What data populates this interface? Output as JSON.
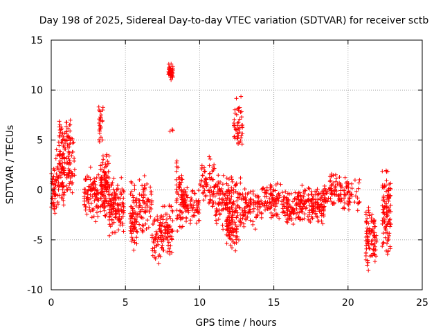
{
  "chart_data": {
    "type": "scatter",
    "title": "Day 198 of 2025, Sidereal Day-to-day VTEC variation (SDTVAR) for receiver sctb",
    "xlabel": "GPS time / hours",
    "ylabel": "SDTVAR / TECUs",
    "xlim": [
      0,
      25
    ],
    "ylim": [
      -10,
      15
    ],
    "xticks": [
      0,
      5,
      10,
      15,
      20,
      25
    ],
    "yticks": [
      -10,
      -5,
      0,
      5,
      10,
      15
    ],
    "xtick_labels": [
      "0",
      "5",
      "10",
      "15",
      "20",
      "25"
    ],
    "ytick_labels": [
      "-10",
      "-5",
      "0",
      "5",
      "10",
      "15"
    ],
    "grid": true,
    "marker": "+",
    "color": "#ff0000",
    "clusters": [
      {
        "x": [
          0.0,
          0.3
        ],
        "y": [
          -3.5,
          3.0
        ],
        "n": 40
      },
      {
        "x": [
          0.3,
          0.9
        ],
        "y": [
          -2.0,
          5.0
        ],
        "n": 80
      },
      {
        "x": [
          0.5,
          1.3
        ],
        "y": [
          2.0,
          7.8
        ],
        "n": 60
      },
      {
        "x": [
          1.0,
          1.6
        ],
        "y": [
          -1.5,
          5.5
        ],
        "n": 50
      },
      {
        "x": [
          2.2,
          3.2
        ],
        "y": [
          -3.5,
          2.5
        ],
        "n": 90
      },
      {
        "x": [
          3.2,
          3.5
        ],
        "y": [
          4.5,
          8.5
        ],
        "n": 25
      },
      {
        "x": [
          3.3,
          3.9
        ],
        "y": [
          -3.0,
          4.0
        ],
        "n": 110
      },
      {
        "x": [
          3.9,
          4.9
        ],
        "y": [
          -5.0,
          1.5
        ],
        "n": 120
      },
      {
        "x": [
          5.3,
          5.8
        ],
        "y": [
          -6.8,
          1.0
        ],
        "n": 70
      },
      {
        "x": [
          5.8,
          6.8
        ],
        "y": [
          -4.5,
          1.5
        ],
        "n": 70
      },
      {
        "x": [
          6.8,
          7.3
        ],
        "y": [
          -7.8,
          -2.0
        ],
        "n": 40
      },
      {
        "x": [
          7.3,
          8.2
        ],
        "y": [
          -7.0,
          -1.0
        ],
        "n": 90
      },
      {
        "x": [
          7.9,
          8.2
        ],
        "y": [
          11.0,
          12.8
        ],
        "n": 40
      },
      {
        "x": [
          8.0,
          8.2
        ],
        "y": [
          5.8,
          6.3
        ],
        "n": 3
      },
      {
        "x": [
          8.4,
          8.9
        ],
        "y": [
          -5.0,
          4.0
        ],
        "n": 60
      },
      {
        "x": [
          8.8,
          10.0
        ],
        "y": [
          -3.5,
          0.5
        ],
        "n": 80
      },
      {
        "x": [
          10.0,
          11.0
        ],
        "y": [
          -2.0,
          3.5
        ],
        "n": 70
      },
      {
        "x": [
          11.0,
          12.0
        ],
        "y": [
          -4.0,
          2.0
        ],
        "n": 80
      },
      {
        "x": [
          11.8,
          12.8
        ],
        "y": [
          -6.5,
          2.0
        ],
        "n": 140
      },
      {
        "x": [
          12.3,
          12.9
        ],
        "y": [
          3.0,
          9.5
        ],
        "n": 50
      },
      {
        "x": [
          12.8,
          14.2
        ],
        "y": [
          -4.0,
          0.5
        ],
        "n": 90
      },
      {
        "x": [
          14.2,
          15.6
        ],
        "y": [
          -3.5,
          1.0
        ],
        "n": 90
      },
      {
        "x": [
          15.6,
          16.8
        ],
        "y": [
          -3.5,
          0.0
        ],
        "n": 100
      },
      {
        "x": [
          16.8,
          18.4
        ],
        "y": [
          -3.5,
          0.5
        ],
        "n": 140
      },
      {
        "x": [
          18.4,
          19.6
        ],
        "y": [
          -2.0,
          2.0
        ],
        "n": 80
      },
      {
        "x": [
          19.6,
          20.8
        ],
        "y": [
          -2.5,
          1.5
        ],
        "n": 50
      },
      {
        "x": [
          21.2,
          21.9
        ],
        "y": [
          -8.5,
          -1.5
        ],
        "n": 90
      },
      {
        "x": [
          22.3,
          22.9
        ],
        "y": [
          -7.0,
          2.7
        ],
        "n": 100
      }
    ]
  }
}
